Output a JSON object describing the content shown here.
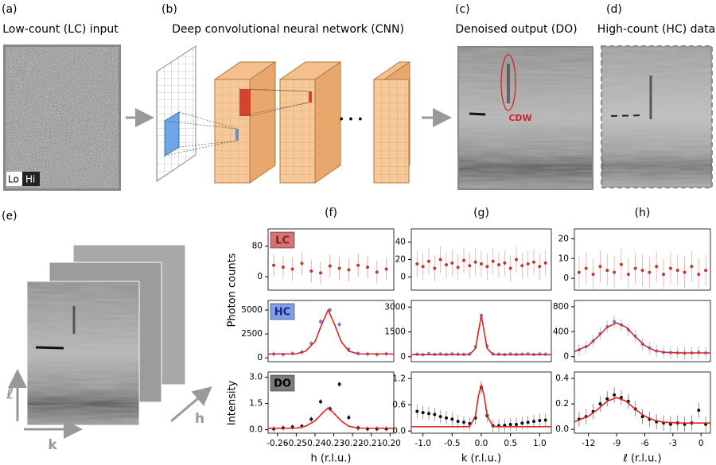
{
  "panels": {
    "a": {
      "label": "(a)",
      "title": "Low-count (LC) input",
      "lo": "Lo",
      "hi": "Hi"
    },
    "b": {
      "label": "(b)",
      "title": "Deep convolutional neural network (CNN)",
      "ellipsis": "• • •"
    },
    "c": {
      "label": "(c)",
      "title": "Denoised output (DO)",
      "annotation": "CDW"
    },
    "d": {
      "label": "(d)",
      "title": "High-count (HC) data"
    },
    "e": {
      "label": "(e)",
      "axis_l": "ℓ",
      "axis_k": "k",
      "axis_h": "h"
    }
  },
  "labels": {
    "ylabel_counts": "Photon counts",
    "ylabel_intensity": "Intensity"
  },
  "chart_data": [
    {
      "type": "scatter",
      "panel_label": "(f)",
      "tag": "LC",
      "tag_color": "#d57474",
      "tag_text_color": "#8b1a1a",
      "xlim": [
        -0.265,
        -0.198
      ],
      "ylim": [
        -35,
        125
      ],
      "yticks": [
        0,
        80
      ],
      "series": [
        {
          "color": "#c0392b",
          "error_color": "#e39a9a",
          "x": [
            -0.262,
            -0.257,
            -0.252,
            -0.247,
            -0.242,
            -0.237,
            -0.232,
            -0.227,
            -0.222,
            -0.217,
            -0.212,
            -0.207,
            -0.202
          ],
          "values": [
            30,
            25,
            20,
            35,
            15,
            10,
            28,
            22,
            18,
            30,
            25,
            12,
            20
          ],
          "errors": [
            30,
            30,
            30,
            30,
            30,
            30,
            30,
            30,
            30,
            30,
            30,
            30,
            30
          ]
        }
      ]
    },
    {
      "type": "scatter",
      "tag": "HC",
      "tag_color": "#7f9ee8",
      "tag_text_color": "#13268a",
      "xlim": [
        -0.265,
        -0.198
      ],
      "ylim": [
        -400,
        6000
      ],
      "yticks": [
        0,
        2500,
        5000
      ],
      "series": [
        {
          "color": "#5b82e0",
          "error_color": "#9db4ee",
          "x": [
            -0.262,
            -0.257,
            -0.252,
            -0.247,
            -0.242,
            -0.237,
            -0.232,
            -0.227,
            -0.222,
            -0.217,
            -0.212,
            -0.207,
            -0.202
          ],
          "values": [
            400,
            350,
            450,
            600,
            1500,
            3800,
            5000,
            3500,
            900,
            450,
            400,
            350,
            420
          ],
          "errors": [
            300,
            300,
            300,
            300,
            300,
            300,
            300,
            300,
            300,
            300,
            300,
            300,
            300
          ]
        },
        {
          "style": "line",
          "color": "#e8201a",
          "x": [
            -0.265,
            -0.25,
            -0.245,
            -0.24,
            -0.236,
            -0.233,
            -0.23,
            -0.226,
            -0.222,
            -0.217,
            -0.198
          ],
          "values": [
            400,
            420,
            700,
            1700,
            3700,
            5000,
            3700,
            1700,
            700,
            420,
            400
          ]
        }
      ]
    },
    {
      "type": "scatter",
      "tag": "DO",
      "tag_color": "#7a7a7a",
      "tag_text_color": "#000000",
      "xlim": [
        -0.265,
        -0.198
      ],
      "ylim": [
        -0.2,
        3.3
      ],
      "yticks": [
        {
          "value": 0,
          "label": "0.0"
        },
        1.5,
        {
          "value": 3,
          "label": "3.0"
        }
      ],
      "xticks": [
        -0.26,
        -0.25,
        -0.24,
        -0.23,
        -0.22,
        -0.21,
        {
          "value": -0.2,
          "label": "-0.20"
        }
      ],
      "xlabel": "h (r.l.u.)",
      "series": [
        {
          "color": "#111111",
          "error_color": "#555555",
          "x": [
            -0.262,
            -0.257,
            -0.252,
            -0.247,
            -0.242,
            -0.237,
            -0.232,
            -0.227,
            -0.222,
            -0.217,
            -0.212,
            -0.207,
            -0.202
          ],
          "values": [
            0.05,
            0.1,
            0.15,
            0.2,
            0.6,
            1.6,
            1.2,
            2.6,
            0.7,
            0.1,
            0.05,
            0.05,
            0.05
          ],
          "errors": [
            0.15,
            0.15,
            0.15,
            0.15,
            0.15,
            0.15,
            0.15,
            0.15,
            0.15,
            0.15,
            0.15,
            0.15,
            0.15
          ]
        },
        {
          "style": "line",
          "color": "#e8201a",
          "x": [
            -0.265,
            -0.25,
            -0.245,
            -0.24,
            -0.236,
            -0.233,
            -0.23,
            -0.226,
            -0.222,
            -0.217,
            -0.198
          ],
          "values": [
            0.08,
            0.09,
            0.2,
            0.5,
            0.95,
            1.25,
            0.95,
            0.5,
            0.2,
            0.09,
            0.08
          ]
        }
      ]
    },
    {
      "type": "scatter",
      "panel_label": "(g)",
      "xlim": [
        -1.2,
        1.2
      ],
      "ylim": [
        -15,
        55
      ],
      "yticks": [
        0,
        20,
        40
      ],
      "series": [
        {
          "color": "#c0392b",
          "error_color": "#e8a8a8",
          "x": [
            -1.1,
            -1,
            -0.9,
            -0.8,
            -0.7,
            -0.6,
            -0.5,
            -0.4,
            -0.3,
            -0.2,
            -0.1,
            0,
            0.1,
            0.2,
            0.3,
            0.4,
            0.5,
            0.6,
            0.7,
            0.8,
            0.9,
            1,
            1.1
          ],
          "values": [
            15,
            12,
            18,
            10,
            20,
            14,
            16,
            11,
            19,
            13,
            17,
            15,
            12,
            18,
            14,
            16,
            10,
            20,
            13,
            15,
            17,
            12,
            16
          ],
          "errors": [
            15,
            15,
            15,
            15,
            15,
            15,
            15,
            15,
            15,
            15,
            15,
            15,
            15,
            15,
            15,
            15,
            15,
            15,
            15,
            15,
            15,
            15,
            15
          ]
        }
      ]
    },
    {
      "type": "scatter",
      "xlim": [
        -1.2,
        1.2
      ],
      "ylim": [
        -300,
        3400
      ],
      "yticks": [
        0,
        1500,
        3000
      ],
      "series": [
        {
          "color": "#5b82e0",
          "error_color": "#9db4ee",
          "x": [
            -1.1,
            -1,
            -0.9,
            -0.8,
            -0.7,
            -0.6,
            -0.5,
            -0.4,
            -0.3,
            -0.2,
            -0.1,
            0,
            0.1,
            0.2,
            0.3,
            0.4,
            0.5,
            0.6,
            0.7,
            0.8,
            0.9,
            1,
            1.1
          ],
          "values": [
            150,
            120,
            180,
            140,
            160,
            130,
            170,
            150,
            140,
            160,
            600,
            2500,
            650,
            170,
            150,
            130,
            160,
            140,
            150,
            170,
            130,
            160,
            150
          ],
          "errors": [
            120,
            120,
            120,
            120,
            120,
            120,
            120,
            120,
            120,
            120,
            120,
            120,
            120,
            120,
            120,
            120,
            120,
            120,
            120,
            120,
            120,
            120,
            120
          ]
        },
        {
          "style": "line",
          "color": "#e8201a",
          "x": [
            -1.2,
            -0.2,
            -0.1,
            -0.05,
            0,
            0.05,
            0.1,
            0.2,
            1.2
          ],
          "values": [
            130,
            130,
            500,
            1500,
            2500,
            1500,
            500,
            130,
            130
          ]
        }
      ]
    },
    {
      "type": "scatter",
      "xlim": [
        -1.2,
        1.2
      ],
      "ylim": [
        -0.05,
        1.35
      ],
      "yticks": [
        {
          "value": 0,
          "label": "0.0"
        },
        0.6,
        1.2
      ],
      "xticks": [
        {
          "value": -1,
          "label": "-1.0"
        },
        -0.5,
        {
          "value": 0,
          "label": "0.0"
        },
        0.5,
        {
          "value": 1,
          "label": "1.0"
        }
      ],
      "xlabel": "k (r.l.u.)",
      "series": [
        {
          "color": "#111111",
          "error_color": "#888888",
          "x": [
            -1.1,
            -1,
            -0.9,
            -0.8,
            -0.7,
            -0.6,
            -0.5,
            -0.4,
            -0.3,
            -0.2,
            -0.1,
            0,
            0.1,
            0.2,
            0.3,
            0.4,
            0.5,
            0.6,
            0.7,
            0.8,
            0.9,
            1,
            1.1
          ],
          "values": [
            0.45,
            0.42,
            0.4,
            0.38,
            0.33,
            0.3,
            0.27,
            0.22,
            0.2,
            0.17,
            0.3,
            1,
            0.35,
            0.12,
            0.12,
            0.13,
            0.15,
            0.15,
            0.18,
            0.2,
            0.22,
            0.24,
            0.25
          ],
          "errors": [
            0.15,
            0.15,
            0.15,
            0.15,
            0.15,
            0.15,
            0.15,
            0.15,
            0.15,
            0.15,
            0.15,
            0.15,
            0.15,
            0.15,
            0.15,
            0.15,
            0.15,
            0.15,
            0.15,
            0.15,
            0.15,
            0.15,
            0.15
          ]
        },
        {
          "style": "line",
          "color": "#e8201a",
          "x": [
            -1.2,
            -0.2,
            -0.1,
            -0.05,
            0,
            0.05,
            0.1,
            0.2,
            1.2
          ],
          "values": [
            0.1,
            0.1,
            0.35,
            0.8,
            1.05,
            0.8,
            0.35,
            0.1,
            0.1
          ]
        }
      ]
    },
    {
      "type": "scatter",
      "panel_label": "(h)",
      "xlim": [
        -13.5,
        1
      ],
      "ylim": [
        -6,
        25
      ],
      "yticks": [
        0,
        10,
        20
      ],
      "series": [
        {
          "color": "#c0392b",
          "error_color": "#e8a8a8",
          "x": [
            -13,
            -12.25,
            -11.5,
            -10.75,
            -10,
            -9.25,
            -8.5,
            -7.75,
            -7,
            -6.25,
            -5.5,
            -4.75,
            -4,
            -3.25,
            -2.5,
            -1.75,
            -1,
            -0.25,
            0.5
          ],
          "values": [
            3,
            5,
            2,
            6,
            4,
            3,
            7,
            2,
            5,
            4,
            3,
            6,
            2,
            5,
            4,
            3,
            6,
            2,
            4
          ],
          "errors": [
            8,
            8,
            8,
            8,
            8,
            8,
            8,
            8,
            8,
            8,
            8,
            8,
            8,
            8,
            8,
            8,
            8,
            8,
            8
          ]
        }
      ]
    },
    {
      "type": "scatter",
      "xlim": [
        -13.5,
        1
      ],
      "ylim": [
        -80,
        900
      ],
      "yticks": [
        0,
        400,
        800
      ],
      "series": [
        {
          "color": "#5b82e0",
          "error_color": "#9db4ee",
          "x": [
            -13,
            -12.25,
            -11.5,
            -10.75,
            -10,
            -9.25,
            -8.5,
            -7.75,
            -7,
            -6.25,
            -5.5,
            -4.75,
            -4,
            -3.25,
            -2.5,
            -1.75,
            -1,
            -0.25,
            0.5
          ],
          "values": [
            110,
            160,
            250,
            370,
            480,
            560,
            510,
            430,
            330,
            200,
            140,
            90,
            70,
            65,
            60,
            55,
            60,
            70,
            60
          ],
          "errors": [
            100,
            100,
            100,
            100,
            100,
            100,
            100,
            100,
            100,
            100,
            100,
            100,
            100,
            100,
            100,
            100,
            100,
            100,
            100
          ]
        },
        {
          "style": "line",
          "color": "#e8201a",
          "x": [
            -13.5,
            -12,
            -11,
            -10,
            -9,
            -8,
            -7,
            -6,
            -5,
            -4,
            -2,
            1
          ],
          "values": [
            81,
            180,
            319,
            471,
            540,
            471,
            319,
            180,
            101,
            70,
            60,
            60
          ]
        }
      ]
    },
    {
      "type": "scatter",
      "xlim": [
        -13.5,
        1
      ],
      "ylim": [
        -0.03,
        0.45
      ],
      "yticks": [
        {
          "value": 0,
          "label": "0.0"
        },
        0.2,
        0.4
      ],
      "xticks": [
        -12,
        -9,
        -6,
        -3,
        0
      ],
      "xlabel": "ℓ (r.l.u.)",
      "series": [
        {
          "color": "#111111",
          "error_color": "#777777",
          "x": [
            -13,
            -12.25,
            -11.5,
            -10.75,
            -10,
            -9.25,
            -8.5,
            -7.75,
            -7,
            -6.25,
            -5.5,
            -4.75,
            -4,
            -3.25,
            -2.5,
            -1.75,
            -1,
            -0.25,
            0.5
          ],
          "values": [
            0.08,
            0.1,
            0.14,
            0.2,
            0.24,
            0.27,
            0.25,
            0.22,
            0.16,
            0.1,
            0.08,
            0.06,
            0.05,
            0.04,
            0.05,
            0.04,
            0.05,
            0.15,
            0.04
          ],
          "errors": [
            0.06,
            0.06,
            0.06,
            0.06,
            0.06,
            0.06,
            0.06,
            0.06,
            0.06,
            0.06,
            0.06,
            0.06,
            0.06,
            0.06,
            0.06,
            0.06,
            0.06,
            0.06,
            0.06
          ]
        },
        {
          "style": "line",
          "color": "#e8201a",
          "x": [
            -13.5,
            -12,
            -11,
            -10,
            -9,
            -8,
            -7,
            -6,
            -5,
            -4,
            -2,
            1
          ],
          "values": [
            0.059,
            0.104,
            0.158,
            0.221,
            0.25,
            0.221,
            0.158,
            0.104,
            0.072,
            0.056,
            0.05,
            0.05
          ]
        }
      ]
    }
  ]
}
